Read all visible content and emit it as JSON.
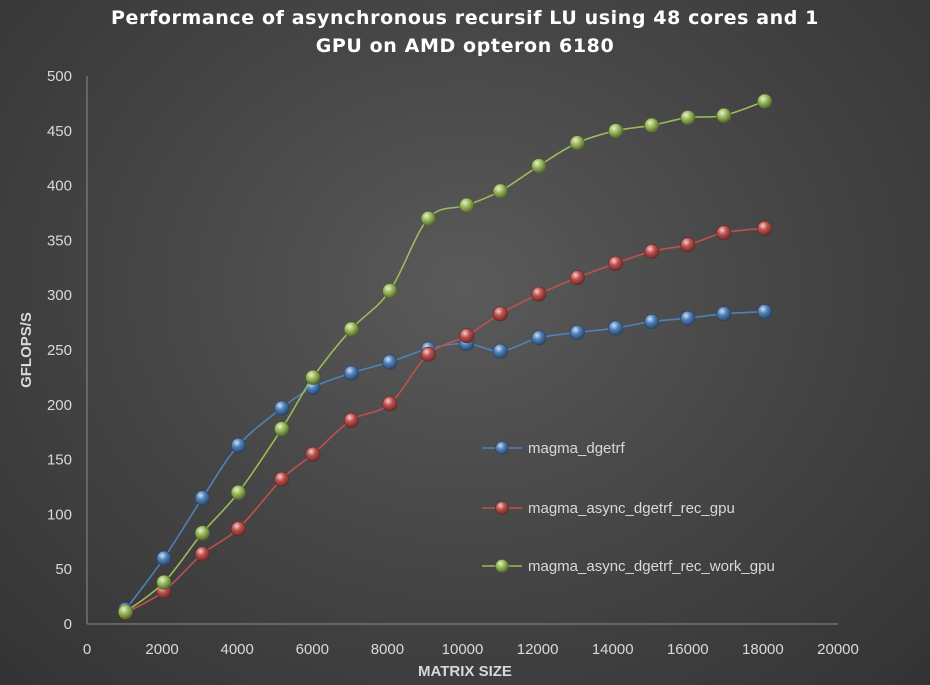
{
  "chart_data": {
    "type": "line",
    "title_lines": [
      "Performance of asynchronous recursif LU using 48 cores and 1",
      "GPU on AMD opteron 6180"
    ],
    "xlabel": "MATRIX SIZE",
    "ylabel": "GFLOPS/S",
    "xlim": [
      0,
      20000
    ],
    "ylim": [
      0,
      500
    ],
    "x_ticks": [
      "0",
      "2000",
      "4000",
      "6000",
      "8000",
      "10000",
      "12000",
      "14000",
      "16000",
      "18000",
      "20000"
    ],
    "y_ticks": [
      "0",
      "50",
      "100",
      "150",
      "200",
      "250",
      "300",
      "350",
      "400",
      "450",
      "500"
    ],
    "grid": false,
    "legend_position": "center-right",
    "marker": "sphere",
    "series": [
      {
        "name": "magma_dgetrf",
        "color": "#4f81bd",
        "x": [
          1024,
          2048,
          3072,
          4032,
          5184,
          6016,
          7040,
          8064,
          9088,
          10112,
          11008,
          12032,
          13056,
          14080,
          15040,
          16000,
          16960,
          18048
        ],
        "y": [
          13,
          60,
          115,
          163,
          197,
          216,
          229,
          239,
          251,
          256,
          249,
          261,
          266,
          270,
          276,
          279,
          283,
          285
        ]
      },
      {
        "name": "magma_async_dgetrf_rec_gpu",
        "color": "#c0504d",
        "x": [
          1024,
          2048,
          3072,
          4032,
          5184,
          6016,
          7040,
          8064,
          9088,
          10112,
          11008,
          12032,
          13056,
          14080,
          15040,
          16000,
          16960,
          18048
        ],
        "y": [
          10,
          30,
          64,
          87,
          132,
          155,
          186,
          201,
          246,
          263,
          283,
          301,
          316,
          329,
          340,
          346,
          357,
          361
        ]
      },
      {
        "name": "magma_async_dgetrf_rec_work_gpu",
        "color": "#9bbb59",
        "x": [
          1024,
          2048,
          3072,
          4032,
          5184,
          6016,
          7040,
          8064,
          9088,
          10112,
          11008,
          12032,
          13056,
          14080,
          15040,
          16000,
          16960,
          18048
        ],
        "y": [
          11,
          38,
          83,
          120,
          178,
          225,
          269,
          304,
          370,
          382,
          395,
          418,
          439,
          450,
          455,
          462,
          464,
          477
        ]
      }
    ]
  }
}
